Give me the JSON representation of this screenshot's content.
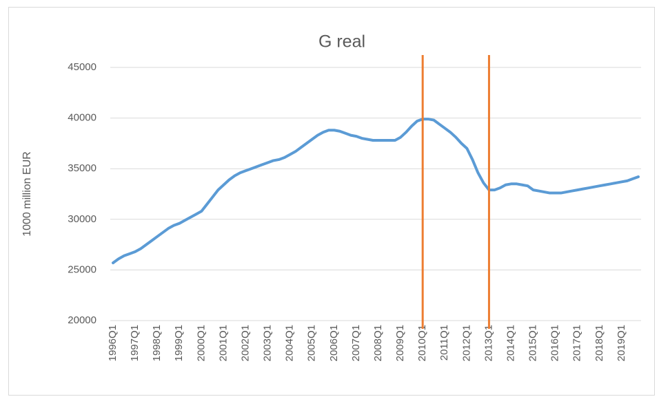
{
  "chart_data": {
    "type": "line",
    "title": "G real",
    "y_label": "1000 million EUR",
    "categories": [
      "1996Q1",
      null,
      null,
      null,
      "1997Q1",
      null,
      null,
      null,
      "1998Q1",
      null,
      null,
      null,
      "1999Q1",
      null,
      null,
      null,
      "2000Q1",
      null,
      null,
      null,
      "2001Q1",
      null,
      null,
      null,
      "2002Q1",
      null,
      null,
      null,
      "2003Q1",
      null,
      null,
      null,
      "2004Q1",
      null,
      null,
      null,
      "2005Q1",
      null,
      null,
      null,
      "2006Q1",
      null,
      null,
      null,
      "2007Q1",
      null,
      null,
      null,
      "2008Q1",
      null,
      null,
      null,
      "2009Q1",
      null,
      null,
      null,
      "2010Q1",
      null,
      null,
      null,
      "2011Q1",
      null,
      null,
      null,
      "2012Q1",
      null,
      null,
      null,
      "2013Q1",
      null,
      null,
      null,
      "2014Q1",
      null,
      null,
      null,
      "2015Q1",
      null,
      null,
      null,
      "2016Q1",
      null,
      null,
      null,
      "2017Q1",
      null,
      null,
      null,
      "2018Q1",
      null,
      null,
      null,
      "2019Q1",
      null,
      null,
      null
    ],
    "values": [
      25700,
      26100,
      26400,
      26600,
      26800,
      27100,
      27500,
      27900,
      28300,
      28700,
      29100,
      29400,
      29600,
      29900,
      30200,
      30500,
      30800,
      31500,
      32200,
      32900,
      33400,
      33900,
      34300,
      34600,
      34800,
      35000,
      35200,
      35400,
      35600,
      35800,
      35900,
      36100,
      36400,
      36700,
      37100,
      37500,
      37900,
      38300,
      38600,
      38800,
      38800,
      38700,
      38500,
      38300,
      38200,
      38000,
      37900,
      37800,
      37800,
      37800,
      37800,
      37800,
      38100,
      38600,
      39200,
      39700,
      39900,
      39900,
      39800,
      39400,
      39000,
      38600,
      38100,
      37500,
      37000,
      35900,
      34600,
      33600,
      32900,
      32900,
      33100,
      33400,
      33500,
      33500,
      33400,
      33300,
      32900,
      32800,
      32700,
      32600,
      32600,
      32600,
      32700,
      32800,
      32900,
      33000,
      33100,
      33200,
      33300,
      33400,
      33500,
      33600,
      33700,
      33800,
      34000,
      34200
    ],
    "color": "#5b9bd5",
    "ylim": [
      20000,
      45000
    ],
    "yticks": [
      20000,
      25000,
      30000,
      35000,
      40000,
      45000
    ],
    "grid": true,
    "vlines": [
      {
        "x": "2010Q1",
        "color": "#ed7d31"
      },
      {
        "x": "2013Q1",
        "color": "#ed7d31"
      }
    ]
  }
}
